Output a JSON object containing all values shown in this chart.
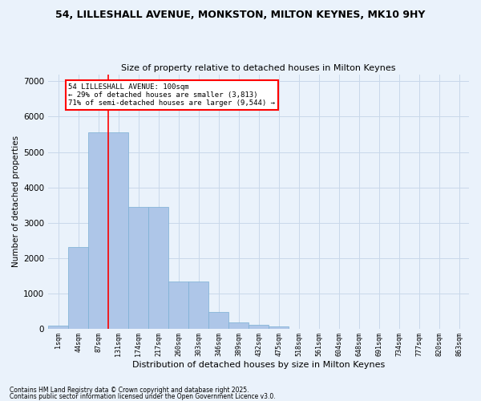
{
  "title": "54, LILLESHALL AVENUE, MONKSTON, MILTON KEYNES, MK10 9HY",
  "subtitle": "Size of property relative to detached houses in Milton Keynes",
  "xlabel": "Distribution of detached houses by size in Milton Keynes",
  "ylabel": "Number of detached properties",
  "bar_color": "#aec6e8",
  "bar_edge_color": "#7aafd4",
  "vline_color": "red",
  "vline_x": 2.5,
  "annotation_text": "54 LILLESHALL AVENUE: 100sqm\n← 29% of detached houses are smaller (3,813)\n71% of semi-detached houses are larger (9,544) →",
  "annotation_box_color": "white",
  "annotation_box_edge": "red",
  "categories": [
    "1sqm",
    "44sqm",
    "87sqm",
    "131sqm",
    "174sqm",
    "217sqm",
    "260sqm",
    "303sqm",
    "346sqm",
    "389sqm",
    "432sqm",
    "475sqm",
    "518sqm",
    "561sqm",
    "604sqm",
    "648sqm",
    "691sqm",
    "734sqm",
    "777sqm",
    "820sqm",
    "863sqm"
  ],
  "values": [
    75,
    2300,
    5550,
    5550,
    3450,
    3450,
    1320,
    1320,
    470,
    165,
    105,
    65,
    0,
    0,
    0,
    0,
    0,
    0,
    0,
    0,
    0
  ],
  "ylim": [
    0,
    7200
  ],
  "yticks": [
    0,
    1000,
    2000,
    3000,
    4000,
    5000,
    6000,
    7000
  ],
  "background_color": "#eaf2fb",
  "grid_color": "#c8d8ea",
  "footer1": "Contains HM Land Registry data © Crown copyright and database right 2025.",
  "footer2": "Contains public sector information licensed under the Open Government Licence v3.0."
}
